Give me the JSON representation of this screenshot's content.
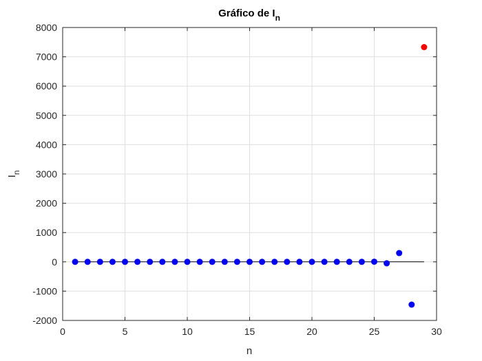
{
  "chart_data": {
    "type": "scatter",
    "title": "Gráfico de I",
    "title_subscript": "n",
    "xlabel": "n",
    "ylabel": "I",
    "ylabel_subscript": "n",
    "xlim": [
      0,
      30
    ],
    "ylim": [
      -2000,
      8000
    ],
    "xticks": [
      0,
      5,
      10,
      15,
      20,
      25,
      30
    ],
    "yticks": [
      -2000,
      -1000,
      0,
      1000,
      2000,
      3000,
      4000,
      5000,
      6000,
      7000,
      8000
    ],
    "grid": true,
    "reference_line": {
      "y": 0,
      "x_from": 1,
      "x_to": 29,
      "color": "#000000"
    },
    "series": [
      {
        "color": "#0000ff",
        "x": [
          1,
          2,
          3,
          4,
          5,
          6,
          7,
          8,
          9,
          10,
          11,
          12,
          13,
          14,
          15,
          16,
          17,
          18,
          19,
          20,
          21,
          22,
          23,
          24,
          25,
          26,
          27,
          28
        ],
        "y": [
          0,
          0,
          0,
          0,
          0,
          0,
          0,
          0,
          0,
          0,
          0,
          0,
          0,
          0,
          0,
          0,
          0,
          0,
          0,
          0,
          0,
          0,
          0,
          0,
          5,
          -50,
          300,
          -1460
        ]
      },
      {
        "color": "#ff0000",
        "x": [
          29
        ],
        "y": [
          7330
        ]
      }
    ]
  }
}
